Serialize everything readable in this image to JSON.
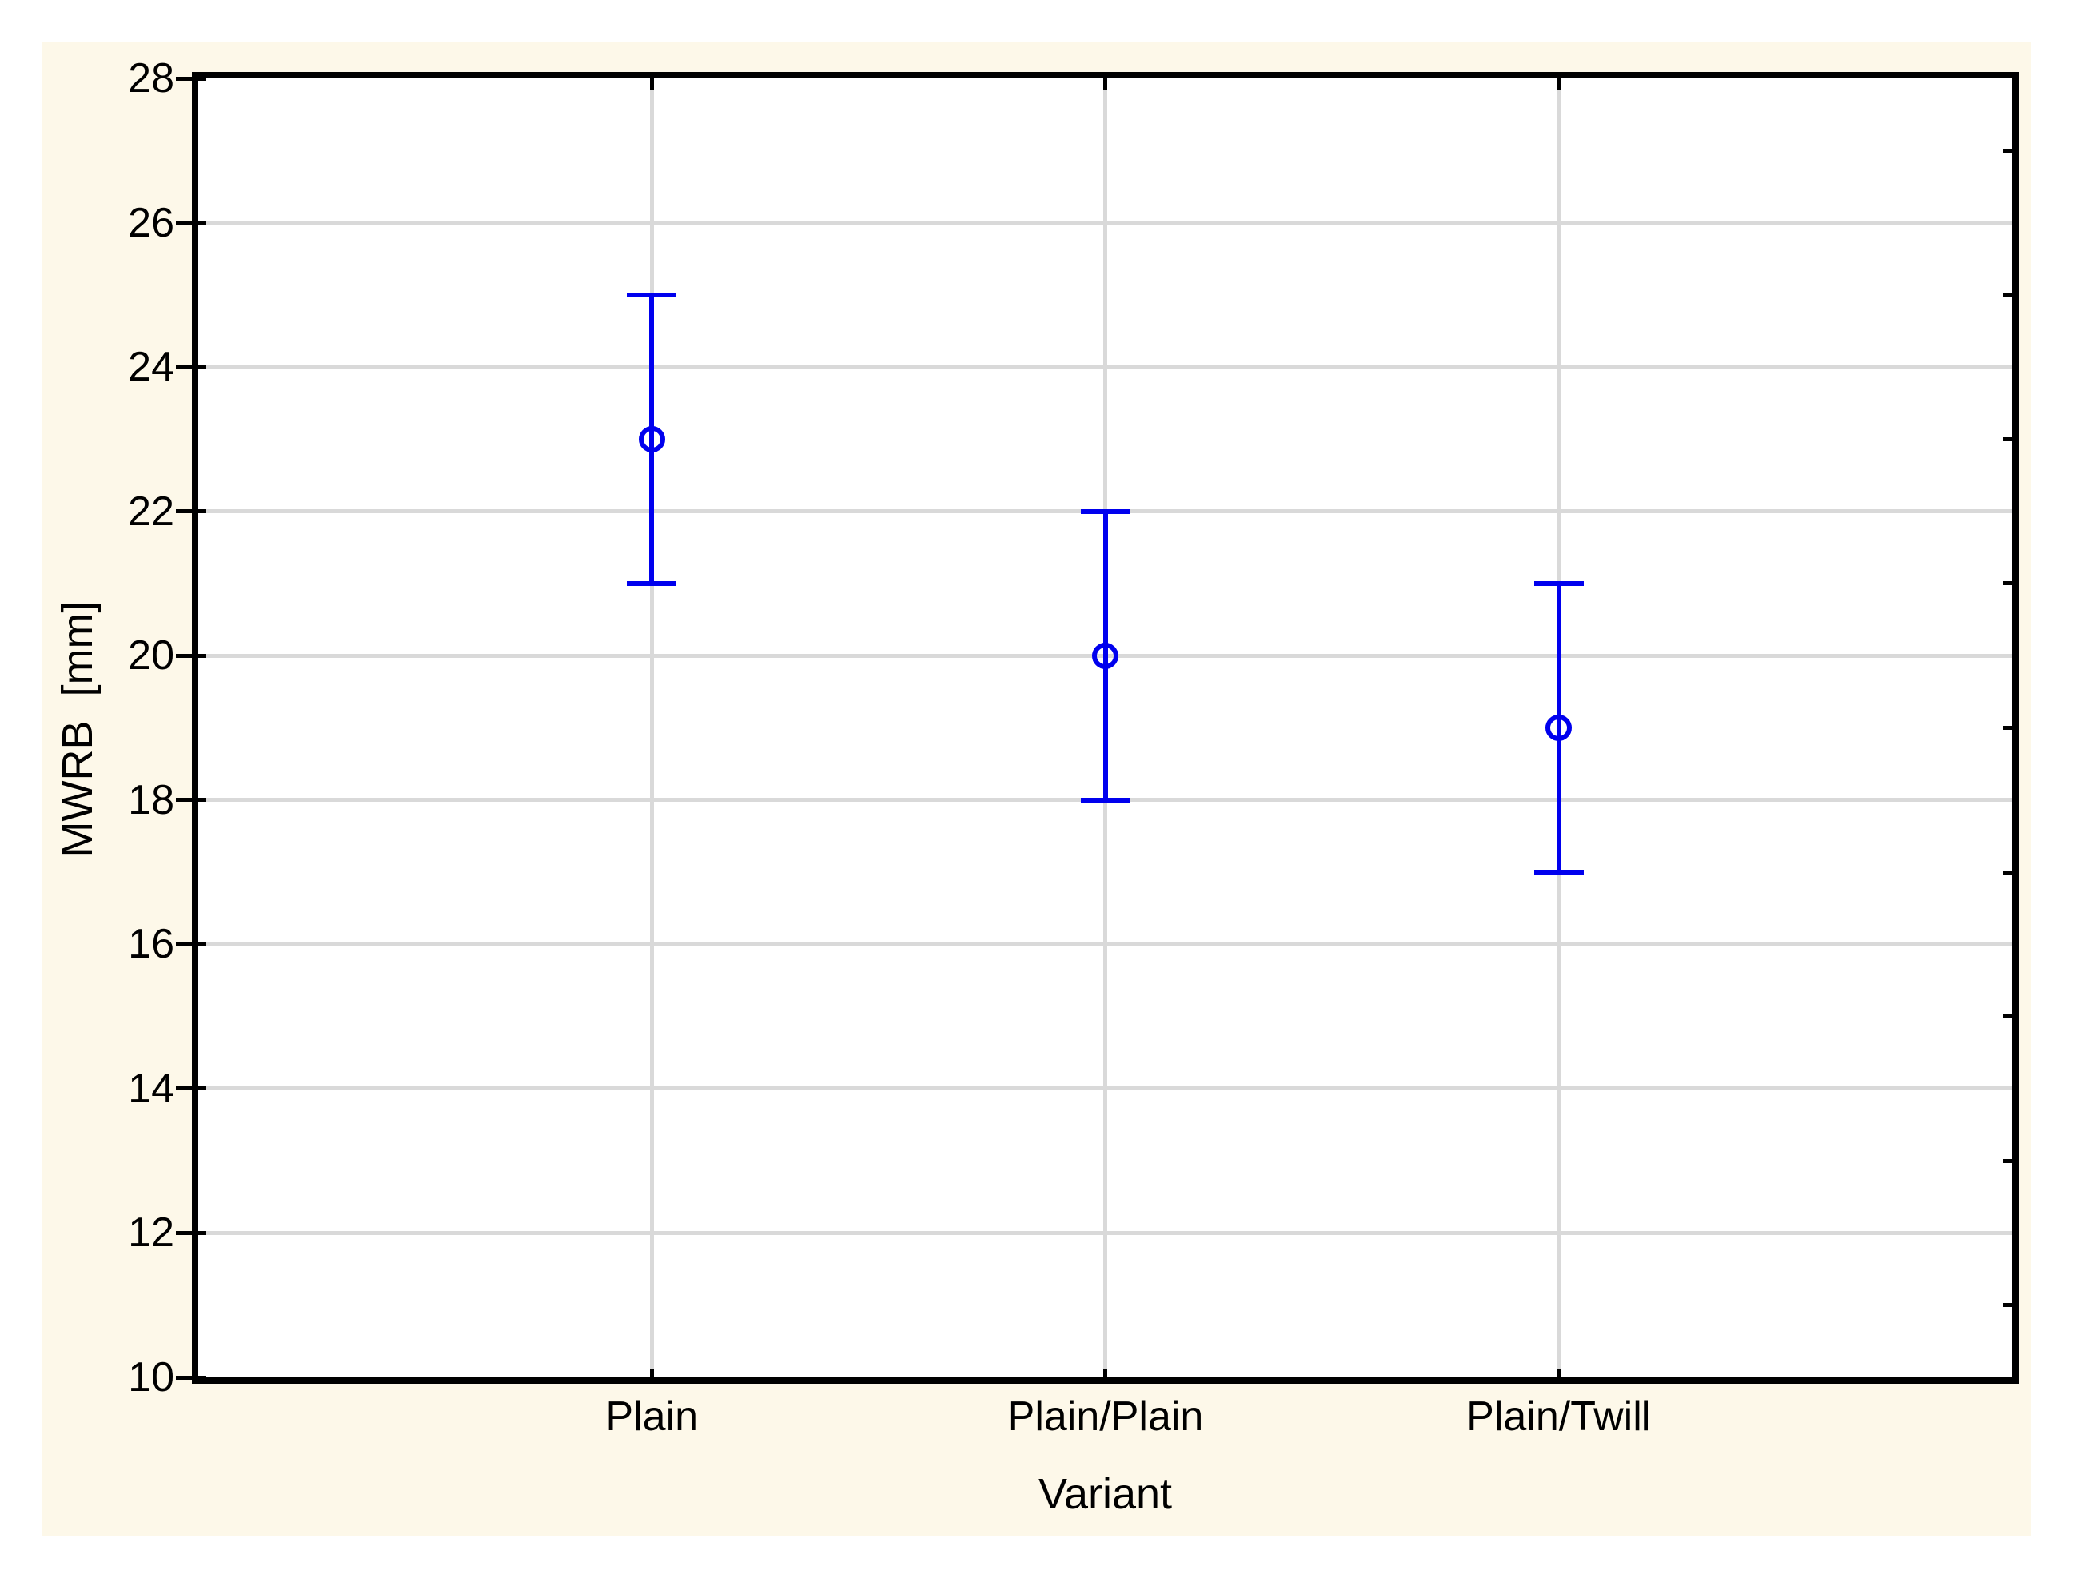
{
  "figure": {
    "background_color": "#FDF8E9",
    "outer_background": "#FFFFFF"
  },
  "chart_data": {
    "type": "scatter",
    "subtype": "means-with-error-bars",
    "title": "",
    "xlabel": "Variant",
    "ylabel": "MWRB  [mm]",
    "categories": [
      "Plain",
      "Plain/Plain",
      "Plain/Twill"
    ],
    "series": [
      {
        "name": "mean",
        "values": [
          23,
          20,
          19
        ]
      },
      {
        "name": "upper-whisker",
        "values": [
          25,
          22,
          21
        ]
      },
      {
        "name": "lower-whisker",
        "values": [
          21,
          18,
          17
        ]
      }
    ],
    "ylim": [
      10,
      28
    ],
    "yticks": [
      10,
      12,
      14,
      16,
      18,
      20,
      22,
      24,
      26,
      28
    ],
    "y_minor_ticks": [
      11,
      13,
      15,
      17,
      19,
      21,
      23,
      25,
      27
    ],
    "grid": "on",
    "legend_position": "none",
    "marker": "open-circle",
    "colors": {
      "point": "#0000EE",
      "grid": "#D9D9D9",
      "axis": "#000000",
      "text": "#000000"
    }
  }
}
